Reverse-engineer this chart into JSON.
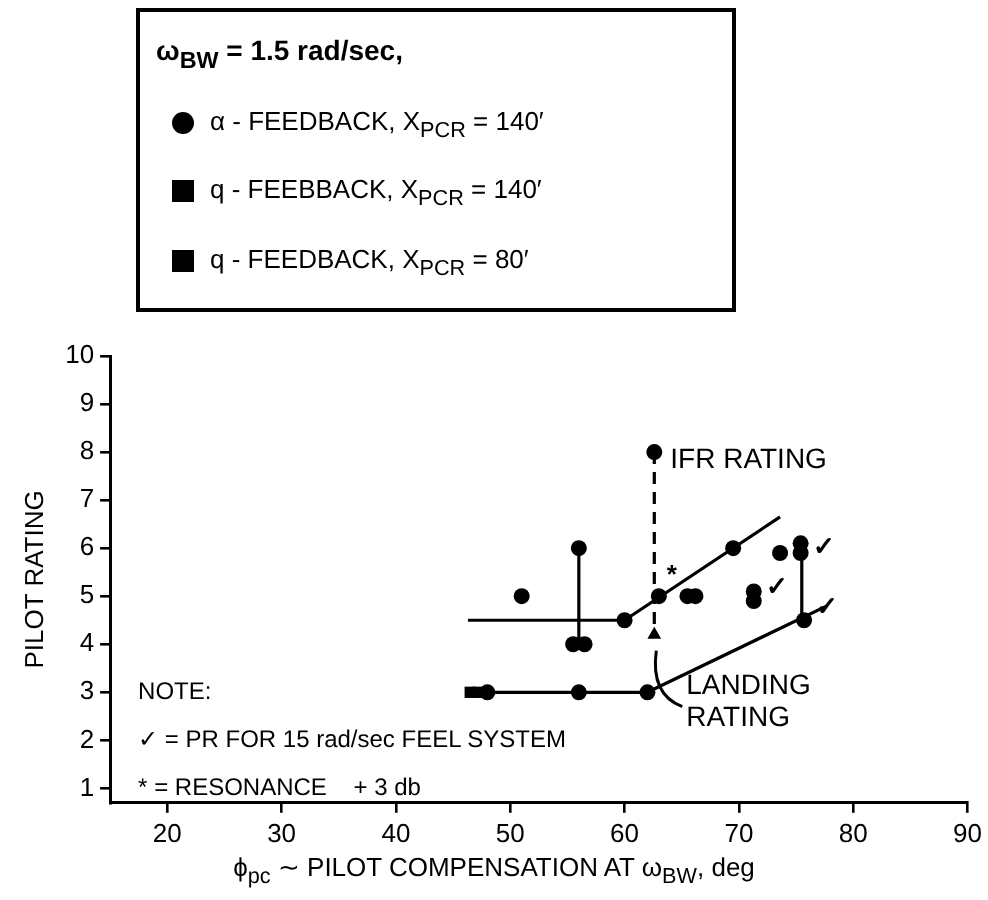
{
  "chart_data": {
    "type": "scatter",
    "xlabel": "ϕ$_{pc}$ ∼ PILOT COMPENSATION AT ω$_{BW}$, deg",
    "ylabel": "PILOT RATING",
    "legend_title": "ω$_{BW}$ = 1.5 rad/sec,",
    "legend": "top",
    "grid": false,
    "xlim": [
      15,
      90
    ],
    "xticks": [
      20,
      30,
      40,
      50,
      60,
      70,
      80,
      90
    ],
    "ylim": [
      0.7,
      10
    ],
    "yticks": [
      1,
      2,
      3,
      4,
      5,
      6,
      7,
      8,
      9,
      10
    ],
    "series": [
      {
        "type": "scatter",
        "name": "α - FEEDBACK, X$_{PCR}$ = 140′",
        "color": "#000000",
        "marker": "circle",
        "x": [
          51,
          56,
          55.5,
          56.5,
          60,
          63,
          65.5,
          66.2,
          69.5,
          71.3,
          71.3,
          73.6,
          75.4,
          75.4,
          75.7,
          56,
          62,
          62.6,
          48
        ],
        "values": [
          5,
          6,
          4,
          4,
          4.5,
          5,
          5,
          5,
          6,
          5.1,
          4.9,
          5.9,
          6.1,
          5.9,
          4.5,
          3,
          3,
          8,
          3
        ]
      },
      {
        "type": "scatter",
        "name": "q - FEEBBACK, X$_{PCR}$ = 140′",
        "color": "#000000",
        "marker": "square",
        "x": [
          46.5,
          47.2
        ],
        "values": [
          3,
          3
        ]
      },
      {
        "type": "scatter",
        "name": "q - FEEDBACK, X$_{PCR}$ = 80′",
        "color": "#000000",
        "marker": "square"
      },
      {
        "type": "scatter",
        "color": "#000000",
        "marker": "triangle",
        "x": [
          62.6
        ],
        "values": [
          4.2
        ]
      },
      {
        "type": "line",
        "color": "#000000",
        "marker": "none",
        "line_style": "solid",
        "x": [
          46.3,
          60,
          73.6
        ],
        "values": [
          4.5,
          4.5,
          6.65
        ]
      },
      {
        "type": "line",
        "color": "#000000",
        "marker": "none",
        "line_style": "solid",
        "x": [
          46.9,
          62,
          77.7
        ],
        "values": [
          3,
          3,
          4.8
        ]
      },
      {
        "type": "line",
        "color": "#000000",
        "marker": "none",
        "line_style": "solid",
        "x": [
          56,
          56
        ],
        "values": [
          6,
          4
        ]
      },
      {
        "type": "line",
        "color": "#000000",
        "marker": "none",
        "line_style": "solid",
        "x": [
          75.5,
          75.5
        ],
        "values": [
          6.1,
          4.5
        ]
      },
      {
        "type": "line",
        "color": "#000000",
        "marker": "none",
        "line_style": "dashed",
        "x": [
          62.6,
          62.6
        ],
        "values": [
          8,
          4.4
        ]
      }
    ],
    "annotations": [
      {
        "text": "IFR RATING",
        "x": 62.6,
        "y": 8
      },
      {
        "text": "LANDING RATING",
        "x": 62.6,
        "y": 4.2
      },
      {
        "text": "*",
        "x": 63,
        "y": 5
      },
      {
        "text": "✓",
        "x": 71.3,
        "y": 5.1
      },
      {
        "text": "✓",
        "x": 75.4,
        "y": 6.1
      },
      {
        "text": "✓",
        "x": 75.7,
        "y": 4.5
      },
      "NOTE:",
      "✓ = PR FOR 15 rad/sec FEEL SYSTEM",
      "* = RESONANCE    + 3 db"
    ]
  }
}
